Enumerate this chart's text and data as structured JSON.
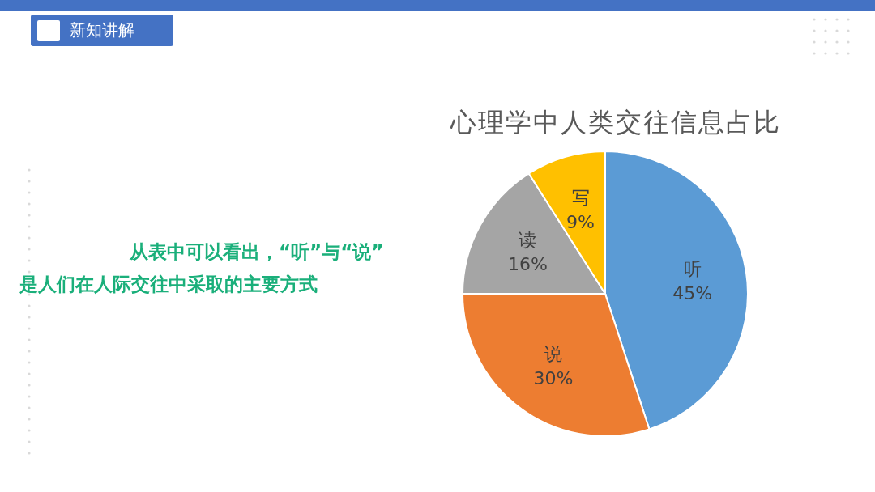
{
  "chart_data": {
    "type": "pie",
    "title": "心理学中人类交往信息占比",
    "categories": [
      "听",
      "说",
      "读",
      "写"
    ],
    "values": [
      45,
      30,
      16,
      9
    ],
    "colors": [
      "#5b9bd5",
      "#ed7d31",
      "#a5a5a5",
      "#ffc000"
    ],
    "value_labels": [
      "45%",
      "30%",
      "16%",
      "9%"
    ],
    "annotations": [
      "新知讲解",
      "从表中可以看出，“听”与“说”",
      "是人们在人际交往中采取的主要方式"
    ]
  }
}
